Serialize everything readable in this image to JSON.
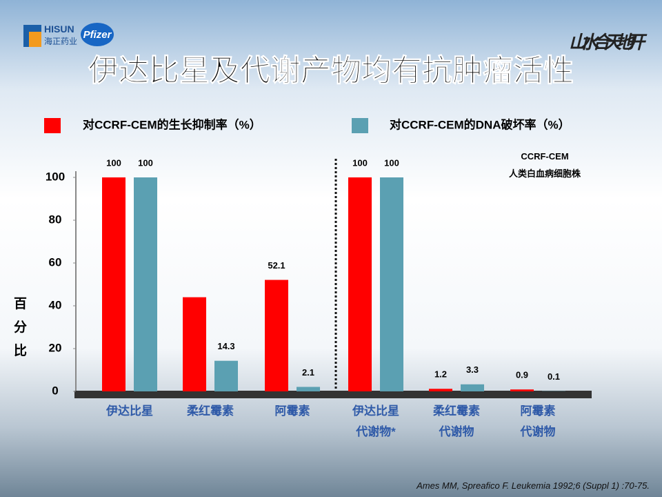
{
  "header": {
    "company": "HISUN",
    "company_cn": "海正药业",
    "partner": "Pfizer",
    "slogan": "山水合天地开"
  },
  "chart_data": {
    "type": "bar",
    "title": "伊达比星及代谢产物均有抗肿瘤活性",
    "y_label": "百分比",
    "annotation": "CCRF-CEM\n人类白血病细胞株",
    "categories": [
      "伊达比星",
      "柔红霉素",
      "阿霉素",
      "伊达比星\n代谢物*",
      "柔红霉素\n代谢物",
      "阿霉素\n代谢物"
    ],
    "series": [
      {
        "name": "对CCRF-CEM的生长抑制率（%）",
        "color": "#ff0000",
        "values": [
          100,
          44,
          52.1,
          100,
          1.2,
          0.9
        ],
        "value_labels": [
          "100",
          null,
          "52.1",
          "100",
          "1.2",
          "0.9"
        ]
      },
      {
        "name": "对CCRF-CEM的DNA破坏率（%）",
        "color": "#5ba0b2",
        "values": [
          100,
          14.3,
          2.1,
          100,
          3.3,
          0.1
        ]
      }
    ],
    "ylim": [
      0,
      100
    ],
    "yticks": [
      0,
      20,
      40,
      60,
      80,
      100
    ],
    "source": "Ames MM, Spreafico F. Leukemia 1992;6 (Suppl 1) :70-75."
  }
}
